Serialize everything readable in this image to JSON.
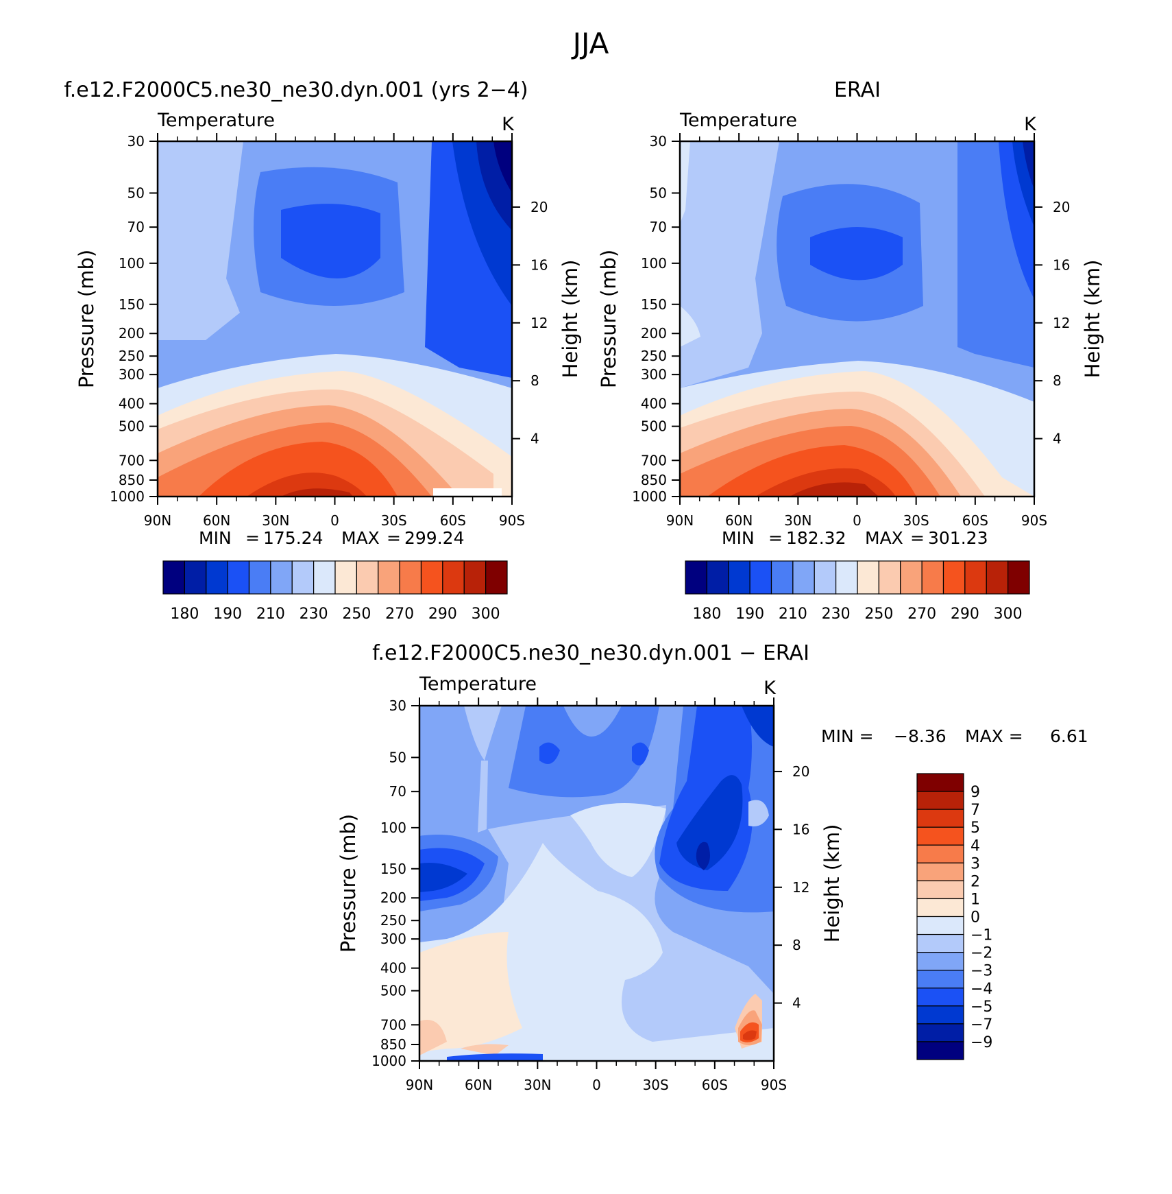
{
  "page_title": "JJA",
  "chart_data": [
    {
      "type": "heatmap",
      "title": "f.e12.F2000C5.ne30_ne30.dyn.001 (yrs 2−4)",
      "subtitle_left": "Temperature",
      "units": "K",
      "ylabel": "Pressure (mb)",
      "ylabel_right": "Height (km)",
      "x_ticks": [
        "90N",
        "60N",
        "30N",
        "0",
        "30S",
        "60S",
        "90S"
      ],
      "y_ticks": [
        "30",
        "50",
        "70",
        "100",
        "150",
        "200",
        "250",
        "300",
        "400",
        "500",
        "700",
        "850",
        "1000"
      ],
      "height_ticks": [
        "20",
        "16",
        "12",
        "8",
        "4"
      ],
      "stats": {
        "min_label": "MIN",
        "min": "175.24",
        "max_label": "MAX",
        "max": "299.24"
      },
      "colorbar": {
        "levels": [
          "180",
          "190",
          "210",
          "230",
          "250",
          "270",
          "290",
          "300"
        ],
        "colors": [
          "#00007f",
          "#001ea6",
          "#0039d1",
          "#1b51f5",
          "#4a7df5",
          "#80a6f7",
          "#b3cafa",
          "#dbe8fb",
          "#fce8d5",
          "#fbcbb0",
          "#f9a37a",
          "#f77b4a",
          "#f5531e",
          "#dc3910",
          "#b82208",
          "#7f0000"
        ]
      },
      "colors": {
        "outer_light": "#b3cafa",
        "band_mid": "#80a6f7",
        "cold_core": "#4a7df5",
        "cold_inner": "#1b51f5",
        "southpole_1": "#1b51f5",
        "southpole_2": "#0039d1",
        "southpole_3": "#001ea6",
        "southpole_4": "#00007f",
        "warm_1": "#dbe8fb",
        "warm_2": "#fce8d5",
        "warm_3": "#fbcbb0",
        "warm_4": "#f9a37a",
        "warm_5": "#f77b4a",
        "warm_6": "#f5531e",
        "warm_7": "#dc3910",
        "warm_8": "#b82208"
      }
    },
    {
      "type": "heatmap",
      "title": "ERAI",
      "subtitle_left": "Temperature",
      "units": "K",
      "ylabel": "Pressure (mb)",
      "ylabel_right": "Height (km)",
      "x_ticks": [
        "90N",
        "60N",
        "30N",
        "0",
        "30S",
        "60S",
        "90S"
      ],
      "y_ticks": [
        "30",
        "50",
        "70",
        "100",
        "150",
        "200",
        "250",
        "300",
        "400",
        "500",
        "700",
        "850",
        "1000"
      ],
      "height_ticks": [
        "20",
        "16",
        "12",
        "8",
        "4"
      ],
      "stats": {
        "min_label": "MIN",
        "min": "182.32",
        "max_label": "MAX",
        "max": "301.23"
      },
      "colorbar": {
        "levels": [
          "180",
          "190",
          "210",
          "230",
          "250",
          "270",
          "290",
          "300"
        ],
        "colors": [
          "#00007f",
          "#001ea6",
          "#0039d1",
          "#1b51f5",
          "#4a7df5",
          "#80a6f7",
          "#b3cafa",
          "#dbe8fb",
          "#fce8d5",
          "#fbcbb0",
          "#f9a37a",
          "#f77b4a",
          "#f5531e",
          "#dc3910",
          "#b82208",
          "#7f0000"
        ]
      }
    },
    {
      "type": "heatmap",
      "title": "f.e12.F2000C5.ne30_ne30.dyn.001 − ERAI",
      "subtitle_left": "Temperature",
      "units": "K",
      "ylabel": "Pressure (mb)",
      "ylabel_right": "Height (km)",
      "x_ticks": [
        "90N",
        "60N",
        "30N",
        "0",
        "30S",
        "60S",
        "90S"
      ],
      "y_ticks": [
        "30",
        "50",
        "70",
        "100",
        "150",
        "200",
        "250",
        "300",
        "400",
        "500",
        "700",
        "850",
        "1000"
      ],
      "height_ticks": [
        "20",
        "16",
        "12",
        "8",
        "4"
      ],
      "stats": {
        "min_label": "MIN =",
        "min": "−8.36",
        "max_label": "MAX =",
        "max": "6.61"
      },
      "colorbar": {
        "levels": [
          "9",
          "7",
          "5",
          "4",
          "3",
          "2",
          "1",
          "0",
          "−1",
          "−2",
          "−3",
          "−4",
          "−5",
          "−7",
          "−9"
        ],
        "colors": [
          "#7f0000",
          "#b82208",
          "#dc3910",
          "#f5531e",
          "#f77b4a",
          "#f9a37a",
          "#fbcbb0",
          "#fce8d5",
          "#dbe8fb",
          "#b3cafa",
          "#80a6f7",
          "#4a7df5",
          "#1b51f5",
          "#0039d1",
          "#001ea6",
          "#00007f"
        ]
      }
    }
  ]
}
